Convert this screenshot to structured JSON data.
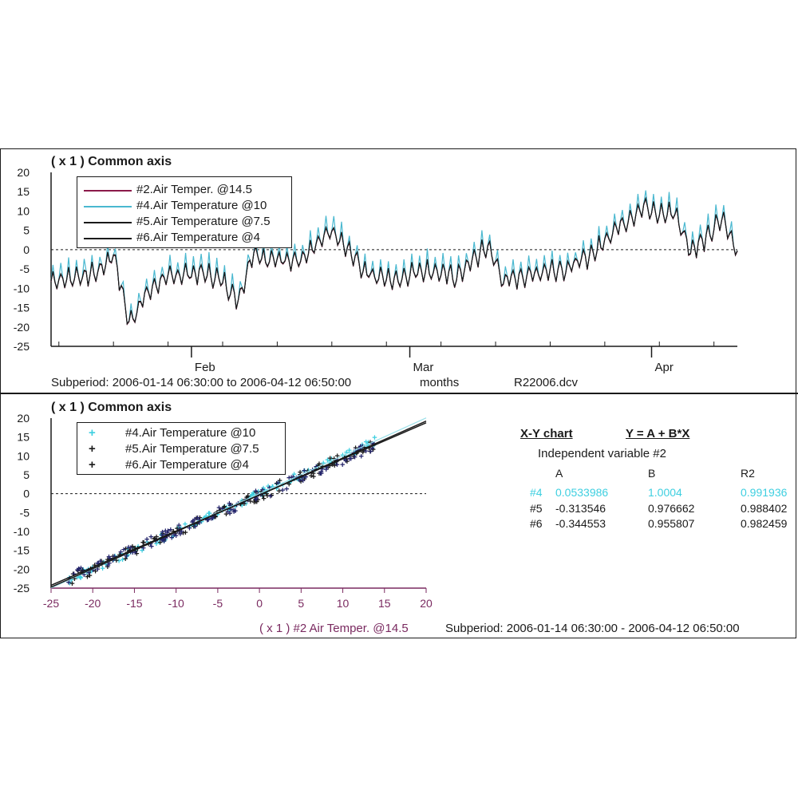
{
  "top_panel": {
    "title": "( x 1 )  Common axis",
    "legend": [
      {
        "label": "#2.Air Temper. @14.5",
        "color": "#8b1a4a"
      },
      {
        "label": "#4.Air Temperature @10",
        "color": "#4ab8d0"
      },
      {
        "label": "#5.Air Temperature @7.5",
        "color": "#1a1a1a"
      },
      {
        "label": "#6.Air Temperature @4",
        "color": "#1a1a1a"
      }
    ],
    "subperiod": "Subperiod: 2006-01-14 06:30:00 to 2006-04-12 06:50:00",
    "x_unit_label": "months",
    "file_name": "R22006.dcv"
  },
  "bottom_panel": {
    "title": "( x 1 )  Common axis",
    "legend": [
      {
        "label": "#4.Air Temperature @10",
        "marker": "+",
        "color": "#3ecfe0"
      },
      {
        "label": "#5.Air Temperature @7.5",
        "marker": "+",
        "color": "#1a1a1a"
      },
      {
        "label": "#6.Air Temperature @4",
        "marker": "+",
        "color": "#1a1a1a"
      }
    ],
    "x_axis_label": "( x 1 ) #2  Air Temper. @14.5",
    "subperiod": "Subperiod: 2006-01-14 06:30:00 - 2006-04-12 06:50:00"
  },
  "regression": {
    "title": "X-Y chart",
    "equation": "Y = A + B*X",
    "independent": "Independent variable #2",
    "headers": [
      "A",
      "B",
      "R2"
    ],
    "rows": [
      {
        "id": "#4",
        "A": "0.0533986",
        "B": "1.0004",
        "R2": "0.991936",
        "color": "#3ecfe0"
      },
      {
        "id": "#5",
        "A": "-0.313546",
        "B": "0.976662",
        "R2": "0.988402",
        "color": "#1a1a1a"
      },
      {
        "id": "#6",
        "A": "-0.344553",
        "B": "0.955807",
        "R2": "0.982459",
        "color": "#1a1a1a"
      }
    ]
  },
  "chart_data": [
    {
      "type": "line",
      "title": "( x 1 )  Common axis",
      "xlabel": "months",
      "ylabel": "",
      "ylim": [
        -25,
        20
      ],
      "y_ticks": [
        20,
        15,
        10,
        5,
        0,
        -5,
        -10,
        -15,
        -20,
        -25
      ],
      "x_ticks": [
        "Feb",
        "Mar",
        "Apr"
      ],
      "x_range": [
        "2006-01-14",
        "2006-04-12"
      ],
      "reference_line": 0,
      "series": [
        {
          "name": "#2.Air Temper. @14.5",
          "color": "#8b1a4a"
        },
        {
          "name": "#4.Air Temperature @10",
          "color": "#4ab8d0"
        },
        {
          "name": "#5.Air Temperature @7.5",
          "color": "#1a1a1a"
        },
        {
          "name": "#6.Air Temperature @4",
          "color": "#1a1a1a"
        }
      ],
      "x_days": [
        0,
        3,
        6,
        8,
        10,
        12,
        14,
        17,
        20,
        22,
        24,
        26,
        28,
        30,
        32,
        34,
        36,
        38,
        40,
        42,
        44,
        46,
        48,
        50,
        52,
        54,
        56,
        58,
        60,
        62,
        64,
        66,
        68,
        70,
        72,
        74,
        76,
        78,
        80,
        82,
        84,
        86,
        88
      ],
      "values_approx": [
        -8,
        -7,
        -6,
        -1,
        -19,
        -12,
        -8,
        -6,
        -6,
        -8,
        -13,
        0,
        -3,
        -2,
        -3,
        1,
        5,
        0,
        -5,
        -7,
        -8,
        -6,
        -5,
        -6,
        -7,
        -3,
        1,
        -8,
        -7,
        -6,
        -5,
        -5,
        -3,
        0,
        5,
        8,
        11,
        9,
        10,
        0,
        3,
        8,
        0
      ]
    },
    {
      "type": "scatter",
      "title": "( x 1 )  Common axis",
      "xlabel": "( x 1 ) #2  Air Temper. @14.5",
      "ylabel": "",
      "xlim": [
        -25,
        20
      ],
      "ylim": [
        -25,
        20
      ],
      "x_ticks": [
        -25,
        -20,
        -15,
        -10,
        -5,
        0,
        5,
        10,
        15,
        20
      ],
      "y_ticks": [
        20,
        15,
        10,
        5,
        0,
        -5,
        -10,
        -15,
        -20,
        -25
      ],
      "reference_line": 0,
      "fit_lines": [
        {
          "series": "#4.Air Temperature @10",
          "A": 0.0533986,
          "B": 1.0004,
          "R2": 0.991936
        },
        {
          "series": "#5.Air Temperature @7.5",
          "A": -0.313546,
          "B": 0.976662,
          "R2": 0.988402
        },
        {
          "series": "#6.Air Temperature @4",
          "A": -0.344553,
          "B": 0.955807,
          "R2": 0.982459
        }
      ],
      "data_x_range": [
        -23,
        14
      ]
    }
  ]
}
